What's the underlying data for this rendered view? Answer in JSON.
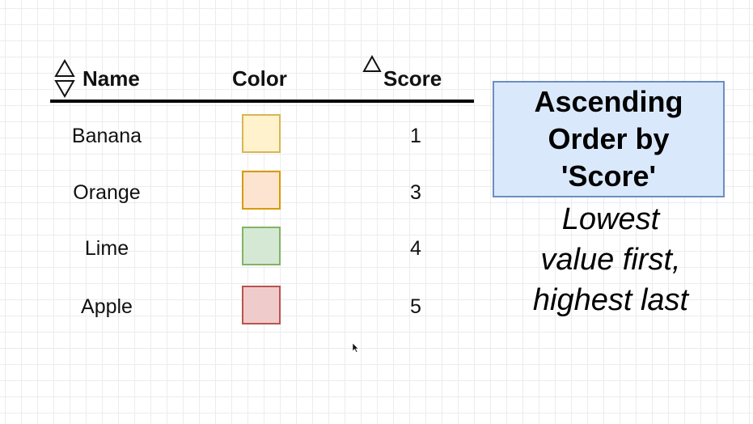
{
  "table": {
    "columns": [
      {
        "label": "Name",
        "sort_indicator": "up-down-triangles"
      },
      {
        "label": "Color",
        "sort_indicator": "none"
      },
      {
        "label": "Score",
        "sort_indicator": "up-triangle"
      }
    ],
    "rows": [
      {
        "name": "Banana",
        "color_fill": "#fff2cc",
        "color_stroke": "#d6b656",
        "score": "1"
      },
      {
        "name": "Orange",
        "color_fill": "#fde4d0",
        "color_stroke": "#d79b00",
        "score": "3"
      },
      {
        "name": "Lime",
        "color_fill": "#d5e8d4",
        "color_stroke": "#82b366",
        "score": "4"
      },
      {
        "name": "Apple",
        "color_fill": "#f0cbcb",
        "color_stroke": "#b85450",
        "score": "5"
      }
    ]
  },
  "callout": {
    "title": "Ascending\nOrder by\n'Score'",
    "subtitle": "Lowest\nvalue first,\nhighest last",
    "fill": "#dae8fc",
    "stroke": "#6c8ebf"
  }
}
